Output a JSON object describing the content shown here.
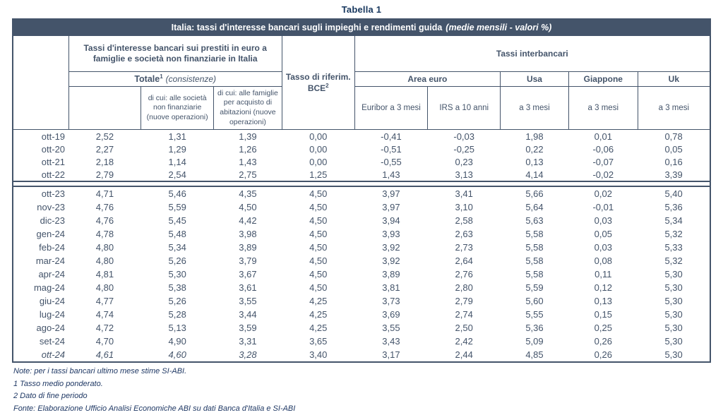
{
  "page": {
    "title": "Tabella 1"
  },
  "colors": {
    "header_bg": "#44546A",
    "border": "#44546A",
    "text": "#44546A",
    "dark_text": "#17375E"
  },
  "table": {
    "header": {
      "title_main": "Italia: tassi d'interesse bancari sugli impieghi e rendimenti guida",
      "title_note": "(medie mensili - valori %)",
      "loans_group": "Tassi d'interesse bancari sui prestiti in euro a famiglie e società non finanziarie in Italia",
      "totale_label": "Totale",
      "totale_sup": "1",
      "totale_note": "(consistenze)",
      "subcol_societa": "di cui: alle società non finanziarie (nuove operazioni)",
      "subcol_famiglie": "di cui: alle famiglie per acquisto di abitazioni (nuove operazioni)",
      "bce_line1": "Tasso di riferim.",
      "bce_label": "BCE",
      "bce_sup": "2",
      "interbank_group": "Tassi interbancari",
      "area_euro": "Area euro",
      "usa": "Usa",
      "giappone": "Giappone",
      "uk": "Uk",
      "euribor": "Euribor a 3 mesi",
      "irs": "IRS a 10 anni",
      "usa_3m": "a 3 mesi",
      "giappone_3m": "a 3 mesi",
      "uk_3m": "a 3 mesi"
    },
    "block1": [
      {
        "label": "ott-19",
        "values": [
          "2,52",
          "1,31",
          "1,39",
          "0,00",
          "-0,41",
          "-0,03",
          "1,98",
          "0,01",
          "0,78"
        ]
      },
      {
        "label": "ott-20",
        "values": [
          "2,27",
          "1,29",
          "1,26",
          "0,00",
          "-0,51",
          "-0,25",
          "0,22",
          "-0,06",
          "0,05"
        ]
      },
      {
        "label": "ott-21",
        "values": [
          "2,18",
          "1,14",
          "1,43",
          "0,00",
          "-0,55",
          "0,23",
          "0,13",
          "-0,07",
          "0,16"
        ]
      },
      {
        "label": "ott-22",
        "values": [
          "2,79",
          "2,54",
          "2,75",
          "1,25",
          "1,43",
          "3,13",
          "4,14",
          "-0,02",
          "3,39"
        ]
      }
    ],
    "block2": [
      {
        "label": "ott-23",
        "values": [
          "4,71",
          "5,46",
          "4,35",
          "4,50",
          "3,97",
          "3,41",
          "5,66",
          "0,02",
          "5,40"
        ]
      },
      {
        "label": "nov-23",
        "values": [
          "4,76",
          "5,59",
          "4,50",
          "4,50",
          "3,97",
          "3,10",
          "5,64",
          "-0,01",
          "5,36"
        ]
      },
      {
        "label": "dic-23",
        "values": [
          "4,76",
          "5,45",
          "4,42",
          "4,50",
          "3,94",
          "2,58",
          "5,63",
          "0,03",
          "5,34"
        ]
      },
      {
        "label": "gen-24",
        "values": [
          "4,78",
          "5,48",
          "3,98",
          "4,50",
          "3,93",
          "2,63",
          "5,58",
          "0,05",
          "5,32"
        ]
      },
      {
        "label": "feb-24",
        "values": [
          "4,80",
          "5,34",
          "3,89",
          "4,50",
          "3,92",
          "2,73",
          "5,58",
          "0,03",
          "5,33"
        ]
      },
      {
        "label": "mar-24",
        "values": [
          "4,80",
          "5,26",
          "3,79",
          "4,50",
          "3,92",
          "2,64",
          "5,58",
          "0,08",
          "5,32"
        ]
      },
      {
        "label": "apr-24",
        "values": [
          "4,81",
          "5,30",
          "3,67",
          "4,50",
          "3,89",
          "2,76",
          "5,58",
          "0,11",
          "5,30"
        ]
      },
      {
        "label": "mag-24",
        "values": [
          "4,80",
          "5,38",
          "3,61",
          "4,50",
          "3,81",
          "2,80",
          "5,59",
          "0,12",
          "5,30"
        ]
      },
      {
        "label": "giu-24",
        "values": [
          "4,77",
          "5,26",
          "3,55",
          "4,25",
          "3,73",
          "2,79",
          "5,60",
          "0,13",
          "5,30"
        ]
      },
      {
        "label": "lug-24",
        "values": [
          "4,74",
          "5,28",
          "3,44",
          "4,25",
          "3,69",
          "2,74",
          "5,55",
          "0,15",
          "5,30"
        ]
      },
      {
        "label": "ago-24",
        "values": [
          "4,72",
          "5,13",
          "3,59",
          "4,25",
          "3,55",
          "2,50",
          "5,36",
          "0,25",
          "5,30"
        ]
      },
      {
        "label": "set-24",
        "values": [
          "4,70",
          "4,90",
          "3,31",
          "3,65",
          "3,43",
          "2,42",
          "5,09",
          "0,26",
          "5,30"
        ]
      },
      {
        "label": "ott-24",
        "values": [
          "4,61",
          "4,60",
          "3,28",
          "3,40",
          "3,17",
          "2,44",
          "4,85",
          "0,26",
          "5,30"
        ],
        "italic_upto": 4
      }
    ]
  },
  "notes": {
    "line1": "Note: per i tassi bancari ultimo mese stime SI-ABI.",
    "line2": "1 Tasso medio ponderato.",
    "line3": "2 Dato di fine periodo",
    "line4": "Fonte: Elaborazione Ufficio Analisi Economiche ABI su dati Banca d'Italia e SI-ABI"
  }
}
